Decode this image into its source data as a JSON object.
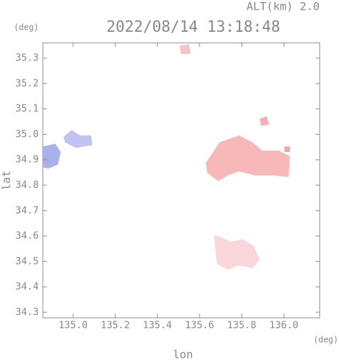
{
  "chart_data": {
    "type": "map",
    "title": "2022/08/14 13:18:48",
    "subtitle": "ALT(km) 2.0",
    "y_unit": "(deg)",
    "x_unit": "(deg)",
    "xlabel": "lon",
    "ylabel": "lat",
    "xlim": [
      134.856,
      136.17
    ],
    "ylim": [
      34.278,
      35.36
    ],
    "xticks": [
      {
        "value": 135,
        "label": "135.0"
      },
      135.2,
      135.4,
      135.6,
      135.8,
      {
        "value": 136,
        "label": "136.0"
      }
    ],
    "yticks": [
      34.3,
      34.4,
      34.5,
      34.6,
      34.7,
      34.8,
      34.9,
      {
        "value": 35,
        "label": "35.0"
      },
      35.1,
      35.2,
      35.3
    ]
  }
}
